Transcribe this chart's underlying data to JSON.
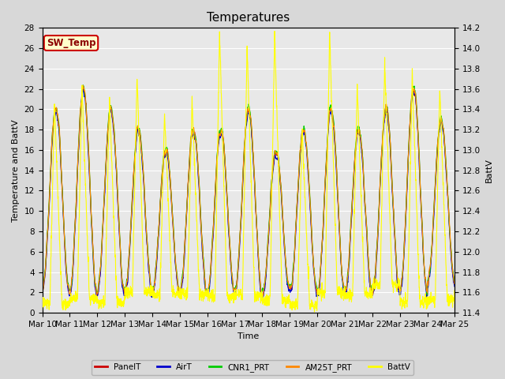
{
  "title": "Temperatures",
  "xlabel": "Time",
  "ylabel_left": "Temperature and BattV",
  "ylabel_right": "BattV",
  "ylim_left": [
    0,
    28
  ],
  "ylim_right": [
    11.4,
    14.2
  ],
  "yticks_left": [
    0,
    2,
    4,
    6,
    8,
    10,
    12,
    14,
    16,
    18,
    20,
    22,
    24,
    26,
    28
  ],
  "yticks_right": [
    11.4,
    11.6,
    11.8,
    12.0,
    12.2,
    12.4,
    12.6,
    12.8,
    13.0,
    13.2,
    13.4,
    13.6,
    13.8,
    14.0,
    14.2
  ],
  "xtick_labels": [
    "Mar 10",
    "Mar 11",
    "Mar 12",
    "Mar 13",
    "Mar 14",
    "Mar 15",
    "Mar 16",
    "Mar 17",
    "Mar 18",
    "Mar 19",
    "Mar 20",
    "Mar 21",
    "Mar 22",
    "Mar 23",
    "Mar 24",
    "Mar 25"
  ],
  "n_days": 15,
  "points_per_day": 144,
  "colors": {
    "PanelT": "#cc0000",
    "AirT": "#0000cc",
    "CNR1_PRT": "#00cc00",
    "AM25T_PRT": "#ff8800",
    "BattV": "#ffff00"
  },
  "annotation_text": "SW_Temp",
  "annotation_color": "#8b0000",
  "annotation_bg": "#ffffcc",
  "annotation_border": "#cc0000",
  "background_color": "#d8d8d8",
  "plot_bg": "#e8e8e8",
  "grid_color": "#ffffff",
  "title_fontsize": 11,
  "label_fontsize": 8,
  "tick_fontsize": 7.5,
  "line_width": 0.8
}
